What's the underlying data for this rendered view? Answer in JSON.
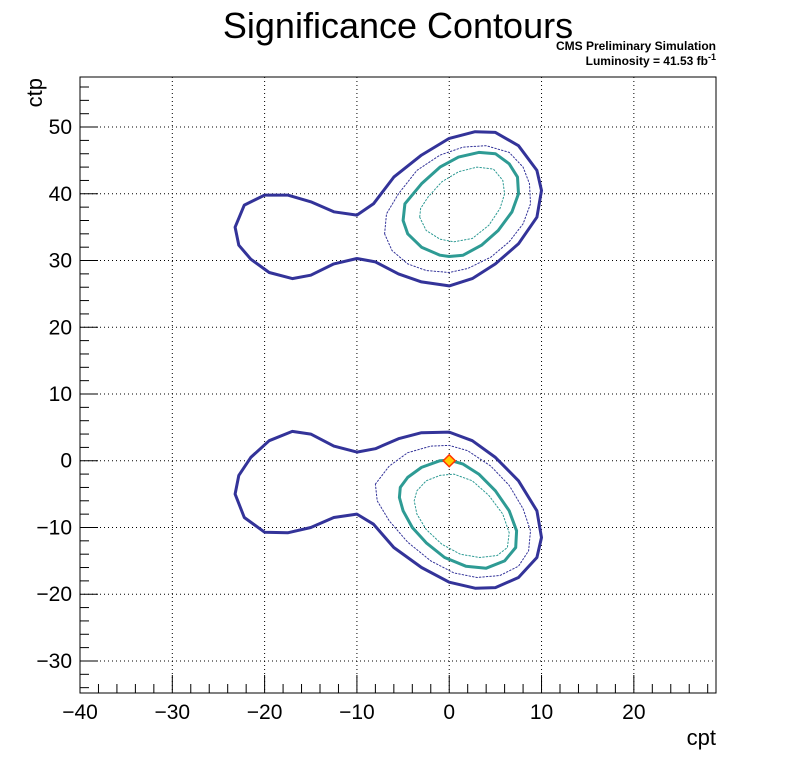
{
  "chart_data": {
    "type": "contour",
    "title": "Significance Contours",
    "xlabel": "cpt",
    "ylabel": "ctp",
    "xlim": [
      -40,
      28.9
    ],
    "ylim": [
      -34.8,
      57.5
    ],
    "x_ticks": [
      -40,
      -30,
      -20,
      -10,
      0,
      10,
      20
    ],
    "y_ticks": [
      -30,
      -20,
      -10,
      0,
      10,
      20,
      30,
      40,
      50
    ],
    "x_tick_labels": [
      "−40",
      "−30",
      "−20",
      "−10",
      "0",
      "10",
      "20"
    ],
    "y_tick_labels": [
      "−30",
      "−20",
      "−10",
      "0",
      "10",
      "20",
      "30",
      "40",
      "50"
    ],
    "grid": true,
    "annotations": {
      "line1": "CMS Preliminary Simulation",
      "line2": "Luminosity = 41.53 fb",
      "line2_sup": "-1"
    },
    "colors": {
      "outer": "#333399",
      "inner": "#2e9b94",
      "marker": "#ff3300",
      "marker_fill": "#ffcc00"
    },
    "contours": [
      {
        "level": "outer-solid-upper",
        "style": "solid-thick",
        "color": "#333399",
        "points": [
          [
            -23.2,
            35
          ],
          [
            -22.8,
            32.3
          ],
          [
            -21.5,
            30.2
          ],
          [
            -19.5,
            28.2
          ],
          [
            -17,
            27.3
          ],
          [
            -15,
            27.8
          ],
          [
            -12.5,
            29.5
          ],
          [
            -10,
            30.3
          ],
          [
            -8,
            29.8
          ],
          [
            -5.5,
            28
          ],
          [
            -3,
            26.8
          ],
          [
            0,
            26.2
          ],
          [
            2.5,
            27.3
          ],
          [
            5,
            29.5
          ],
          [
            7.5,
            32.5
          ],
          [
            9.5,
            36.5
          ],
          [
            10,
            40.5
          ],
          [
            9.5,
            43.5
          ],
          [
            7.5,
            47.2
          ],
          [
            5,
            49.2
          ],
          [
            2.8,
            49.3
          ],
          [
            0,
            48.3
          ],
          [
            -3,
            45.8
          ],
          [
            -6,
            42.5
          ],
          [
            -8.2,
            38.5
          ],
          [
            -10,
            36.8
          ],
          [
            -12.5,
            37.3
          ],
          [
            -15,
            38.8
          ],
          [
            -17.5,
            39.8
          ],
          [
            -20,
            39.8
          ],
          [
            -22.2,
            38.3
          ]
        ]
      },
      {
        "level": "outer-dotted-upper",
        "style": "dotted",
        "color": "#333399",
        "points": [
          [
            -7,
            34
          ],
          [
            -6.2,
            31.5
          ],
          [
            -4.5,
            29.5
          ],
          [
            -2.5,
            28.5
          ],
          [
            0,
            28.2
          ],
          [
            2,
            28.8
          ],
          [
            4.5,
            30.5
          ],
          [
            6.5,
            32.8
          ],
          [
            8,
            35.5
          ],
          [
            8.8,
            38.5
          ],
          [
            8.7,
            41.5
          ],
          [
            8,
            44
          ],
          [
            6.5,
            46.2
          ],
          [
            4,
            47.2
          ],
          [
            1.5,
            47
          ],
          [
            -1,
            45.8
          ],
          [
            -3.5,
            43.5
          ],
          [
            -5.5,
            40
          ],
          [
            -6.8,
            37
          ]
        ]
      },
      {
        "level": "inner-solid-upper",
        "style": "solid-thick",
        "color": "#2e9b94",
        "points": [
          [
            -5,
            36
          ],
          [
            -4.5,
            34
          ],
          [
            -3,
            32
          ],
          [
            -1,
            30.8
          ],
          [
            0,
            30.6
          ],
          [
            1.5,
            30.8
          ],
          [
            3.5,
            32.3
          ],
          [
            5.3,
            34.5
          ],
          [
            6.8,
            37.3
          ],
          [
            7.5,
            40
          ],
          [
            7.4,
            42.5
          ],
          [
            6.5,
            44.5
          ],
          [
            5,
            46
          ],
          [
            3.2,
            46.2
          ],
          [
            1,
            45.5
          ],
          [
            -1,
            44
          ],
          [
            -3,
            41.5
          ],
          [
            -4.8,
            38.5
          ]
        ]
      },
      {
        "level": "inner-dotted-upper",
        "style": "dotted",
        "color": "#2e9b94",
        "points": [
          [
            -3.2,
            36.5
          ],
          [
            -2.5,
            34.5
          ],
          [
            -1,
            33.2
          ],
          [
            0.5,
            32.8
          ],
          [
            2.5,
            33.3
          ],
          [
            4.3,
            35.3
          ],
          [
            5.5,
            37.8
          ],
          [
            6,
            40
          ],
          [
            5.8,
            42
          ],
          [
            4.8,
            43.7
          ],
          [
            3,
            44
          ],
          [
            1,
            43.3
          ],
          [
            -0.8,
            41.8
          ],
          [
            -2.3,
            39.5
          ],
          [
            -3.1,
            37.8
          ]
        ]
      },
      {
        "level": "outer-solid-lower",
        "style": "solid-thick",
        "color": "#333399",
        "points": [
          [
            -23.2,
            -5
          ],
          [
            -22.8,
            -2.2
          ],
          [
            -21.5,
            0.5
          ],
          [
            -19.5,
            3
          ],
          [
            -17,
            4.4
          ],
          [
            -15,
            4
          ],
          [
            -12.5,
            2.2
          ],
          [
            -10,
            1.3
          ],
          [
            -8,
            1.8
          ],
          [
            -5.5,
            3.3
          ],
          [
            -3,
            4.2
          ],
          [
            0,
            4.3
          ],
          [
            2.5,
            3
          ],
          [
            5,
            0.5
          ],
          [
            7.5,
            -3
          ],
          [
            9.5,
            -7.5
          ],
          [
            10,
            -11.5
          ],
          [
            9.5,
            -14.5
          ],
          [
            7.5,
            -17.5
          ],
          [
            5,
            -19
          ],
          [
            2.8,
            -19.1
          ],
          [
            0,
            -18.2
          ],
          [
            -3,
            -16
          ],
          [
            -6,
            -13
          ],
          [
            -8.2,
            -9.5
          ],
          [
            -10,
            -8
          ],
          [
            -12.5,
            -8.5
          ],
          [
            -15,
            -10
          ],
          [
            -17.5,
            -10.8
          ],
          [
            -20,
            -10.7
          ],
          [
            -22.2,
            -8.5
          ]
        ]
      },
      {
        "level": "outer-dotted-lower",
        "style": "dotted",
        "color": "#333399",
        "points": [
          [
            -8,
            -3.5
          ],
          [
            -6.5,
            -0.8
          ],
          [
            -4.5,
            1.2
          ],
          [
            -2,
            2.2
          ],
          [
            0,
            2.3
          ],
          [
            2,
            1.5
          ],
          [
            4.5,
            -0.8
          ],
          [
            6.5,
            -3.7
          ],
          [
            8,
            -7.2
          ],
          [
            8.8,
            -10.5
          ],
          [
            8.6,
            -13.5
          ],
          [
            7.5,
            -15.8
          ],
          [
            5.5,
            -17.2
          ],
          [
            3,
            -17.5
          ],
          [
            0.5,
            -16.8
          ],
          [
            -2,
            -15
          ],
          [
            -4.5,
            -12.2
          ],
          [
            -6.5,
            -9
          ],
          [
            -7.8,
            -6
          ]
        ]
      },
      {
        "level": "inner-solid-lower",
        "style": "solid-thick",
        "color": "#2e9b94",
        "points": [
          [
            -5.3,
            -4
          ],
          [
            -4.5,
            -2.5
          ],
          [
            -3,
            -1
          ],
          [
            -1,
            0
          ],
          [
            0,
            0.1
          ],
          [
            1.5,
            -0.5
          ],
          [
            3.2,
            -2
          ],
          [
            5,
            -4.5
          ],
          [
            6.5,
            -7.5
          ],
          [
            7.3,
            -10.5
          ],
          [
            7.2,
            -13
          ],
          [
            6,
            -15
          ],
          [
            4,
            -16.1
          ],
          [
            1.8,
            -15.8
          ],
          [
            -0.5,
            -14.5
          ],
          [
            -2.5,
            -12.3
          ],
          [
            -4,
            -10
          ],
          [
            -5,
            -7.5
          ],
          [
            -5.4,
            -5.5
          ]
        ]
      },
      {
        "level": "inner-dotted-lower",
        "style": "dotted",
        "color": "#2e9b94",
        "points": [
          [
            -3.5,
            -4.5
          ],
          [
            -2.5,
            -3
          ],
          [
            -1,
            -2.2
          ],
          [
            0.5,
            -2
          ],
          [
            2.5,
            -3
          ],
          [
            4.3,
            -5.2
          ],
          [
            5.8,
            -8
          ],
          [
            6.5,
            -10.8
          ],
          [
            6.3,
            -13
          ],
          [
            5.2,
            -14.2
          ],
          [
            3.3,
            -14.5
          ],
          [
            1.2,
            -14
          ],
          [
            -0.8,
            -12.5
          ],
          [
            -2.5,
            -10.3
          ],
          [
            -3.5,
            -8
          ],
          [
            -3.8,
            -6
          ]
        ]
      }
    ],
    "markers": [
      {
        "name": "sm-point",
        "x": 0,
        "y": 0
      }
    ]
  }
}
